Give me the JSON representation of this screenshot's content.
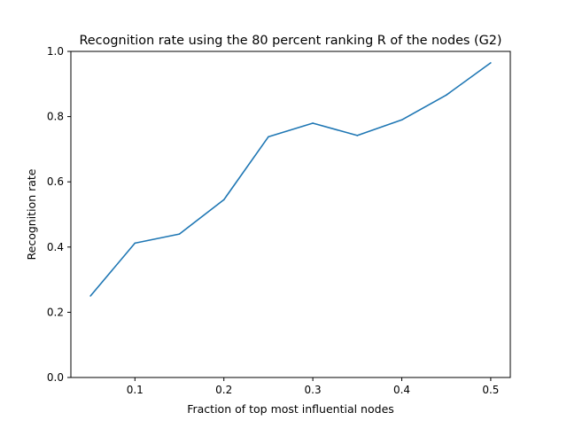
{
  "chart_data": {
    "type": "line",
    "title": "Recognition rate using the 80 percent ranking R of the nodes (G2)",
    "xlabel": "Fraction of top most influential nodes",
    "ylabel": "Recognition rate",
    "xlim": [
      0.028,
      0.522
    ],
    "ylim": [
      0.0,
      1.0
    ],
    "xticks": [
      0.1,
      0.2,
      0.3,
      0.4,
      0.5
    ],
    "xtick_labels": [
      "0.1",
      "0.2",
      "0.3",
      "0.4",
      "0.5"
    ],
    "yticks": [
      0.0,
      0.2,
      0.4,
      0.6,
      0.8,
      1.0
    ],
    "ytick_labels": [
      "0.0",
      "0.2",
      "0.4",
      "0.6",
      "0.8",
      "1.0"
    ],
    "grid": false,
    "legend": "none",
    "series": [
      {
        "color": "#1f77b4",
        "x": [
          0.05,
          0.1,
          0.15,
          0.2,
          0.25,
          0.3,
          0.35,
          0.4,
          0.45,
          0.5
        ],
        "y": [
          0.25,
          0.412,
          0.44,
          0.545,
          0.738,
          0.78,
          0.742,
          0.79,
          0.866,
          0.965
        ]
      }
    ]
  }
}
